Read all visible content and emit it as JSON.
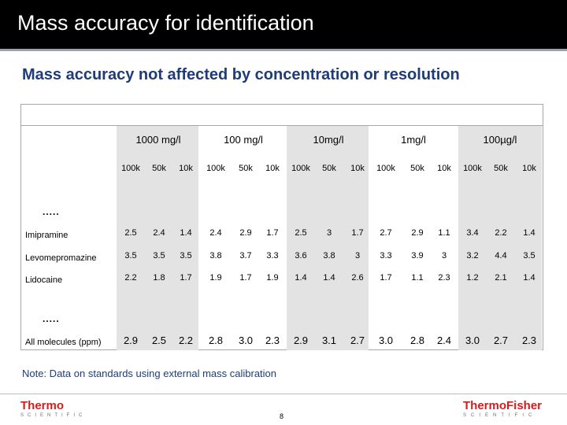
{
  "slide": {
    "title": "Mass accuracy for identification",
    "subtitle": "Mass accuracy not affected by concentration or resolution",
    "note": "Note: Data on standards using external mass calibration",
    "page_number": "8",
    "logo_left": {
      "brand": "Thermo",
      "tagline": "SCIENTIFIC"
    },
    "logo_right": {
      "brand": "ThermoFisher",
      "tagline": "SCIENTIFIC"
    }
  },
  "table": {
    "concentrations": [
      "1000 mg/l",
      "100 mg/l",
      "10mg/l",
      "1mg/l",
      "100µg/l"
    ],
    "resolutions": [
      "100k",
      "50k",
      "10k",
      "100k",
      "50k",
      "10k",
      "100k",
      "50k",
      "10k",
      "100k",
      "50k",
      "10k",
      "100k",
      "50k",
      "10k"
    ],
    "ellipsis": ".....",
    "rows": [
      {
        "label": "Imipramine",
        "values": [
          "2.5",
          "2.4",
          "1.4",
          "2.4",
          "2.9",
          "1.7",
          "2.5",
          "3",
          "1.7",
          "2.7",
          "2.9",
          "1.1",
          "3.4",
          "2.2",
          "1.4"
        ]
      },
      {
        "label": "Levomepromazine",
        "values": [
          "3.5",
          "3.5",
          "3.5",
          "3.8",
          "3.7",
          "3.3",
          "3.6",
          "3.8",
          "3",
          "3.3",
          "3.9",
          "3",
          "3.2",
          "4.4",
          "3.5"
        ]
      },
      {
        "label": "Lidocaine",
        "values": [
          "2.2",
          "1.8",
          "1.7",
          "1.9",
          "1.7",
          "1.9",
          "1.4",
          "1.4",
          "2.6",
          "1.7",
          "1.1",
          "2.3",
          "1.2",
          "2.1",
          "1.4"
        ]
      }
    ],
    "summary": {
      "label": "All molecules (ppm)",
      "values": [
        "2.9",
        "2.5",
        "2.2",
        "2.8",
        "3.0",
        "2.3",
        "2.9",
        "3.1",
        "2.7",
        "3.0",
        "2.8",
        "2.4",
        "3.0",
        "2.7",
        "2.3"
      ]
    }
  },
  "colors": {
    "title_bg": "#000000",
    "title_text": "#ffffff",
    "subtitle": "#1f3c7a",
    "band": "#e3e3e3",
    "logo_red": "#d41d1d"
  }
}
